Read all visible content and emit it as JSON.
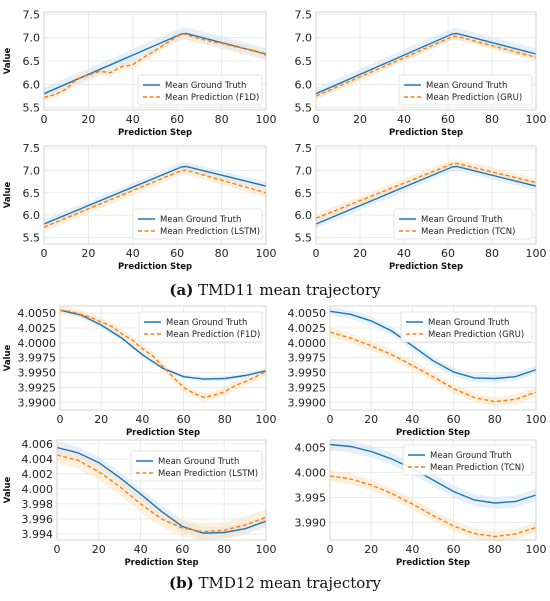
{
  "captions": [
    {
      "label": "(a)",
      "text": " TMD11 mean trajectory"
    },
    {
      "label": "(b)",
      "text": " TMD12 mean trajectory"
    }
  ],
  "colors": {
    "truth": "#1f77b4",
    "pred": "#ff7f0e",
    "truth_band": "#cfe3f5",
    "pred_band": "#fde3c4"
  },
  "chart_data": [
    {
      "type": "line",
      "group": "TMD11",
      "xlabel": "Prediction Step",
      "ylabel": "Value",
      "xlim": [
        0,
        100
      ],
      "ylim": [
        5.45,
        7.55
      ],
      "xticks": [
        "0",
        "20",
        "40",
        "60",
        "80",
        "100"
      ],
      "yticks": [
        "5.5",
        "6.0",
        "6.5",
        "7.0",
        "7.5"
      ],
      "legend_loc": "lower-right",
      "series": [
        {
          "name": "Mean Ground Truth",
          "x": [
            0,
            62,
            64,
            100
          ],
          "y": [
            5.8,
            7.08,
            7.09,
            6.65
          ]
        },
        {
          "name": "Mean Prediction (F1D)",
          "x": [
            0,
            5,
            10,
            15,
            20,
            25,
            30,
            35,
            40,
            45,
            50,
            55,
            60,
            63,
            65,
            70,
            75,
            80,
            85,
            90,
            95,
            100
          ],
          "y": [
            5.72,
            5.78,
            5.9,
            6.12,
            6.2,
            6.28,
            6.25,
            6.38,
            6.42,
            6.58,
            6.72,
            6.88,
            7.03,
            7.08,
            7.05,
            6.98,
            6.92,
            6.88,
            6.82,
            6.77,
            6.72,
            6.62
          ]
        }
      ]
    },
    {
      "type": "line",
      "group": "TMD11",
      "xlabel": "Prediction Step",
      "ylabel": "",
      "xlim": [
        0,
        100
      ],
      "ylim": [
        5.45,
        7.55
      ],
      "xticks": [
        "0",
        "20",
        "40",
        "60",
        "80",
        "100"
      ],
      "yticks": [
        "5.5",
        "6.0",
        "6.5",
        "7.0",
        "7.5"
      ],
      "legend_loc": "lower-right",
      "series": [
        {
          "name": "Mean Ground Truth",
          "x": [
            0,
            62,
            64,
            100
          ],
          "y": [
            5.8,
            7.08,
            7.09,
            6.65
          ]
        },
        {
          "name": "Mean Prediction (GRU)",
          "x": [
            0,
            62,
            64,
            100
          ],
          "y": [
            5.75,
            7.02,
            7.03,
            6.58
          ]
        }
      ]
    },
    {
      "type": "line",
      "group": "TMD11",
      "xlabel": "Prediction Step",
      "ylabel": "Value",
      "xlim": [
        0,
        100
      ],
      "ylim": [
        5.35,
        7.55
      ],
      "xticks": [
        "0",
        "20",
        "40",
        "60",
        "80",
        "100"
      ],
      "yticks": [
        "5.5",
        "6.0",
        "6.5",
        "7.0",
        "7.5"
      ],
      "legend_loc": "lower-right",
      "series": [
        {
          "name": "Mean Ground Truth",
          "x": [
            0,
            62,
            64,
            100
          ],
          "y": [
            5.8,
            7.08,
            7.09,
            6.65
          ]
        },
        {
          "name": "Mean Prediction (LSTM)",
          "x": [
            0,
            62,
            64,
            100
          ],
          "y": [
            5.73,
            7.0,
            7.01,
            6.5
          ]
        }
      ]
    },
    {
      "type": "line",
      "group": "TMD11",
      "xlabel": "Prediction Step",
      "ylabel": "",
      "xlim": [
        0,
        100
      ],
      "ylim": [
        5.35,
        7.55
      ],
      "xticks": [
        "0",
        "20",
        "40",
        "60",
        "80",
        "100"
      ],
      "yticks": [
        "5.5",
        "6.0",
        "6.5",
        "7.0",
        "7.5"
      ],
      "legend_loc": "lower-right",
      "series": [
        {
          "name": "Mean Ground Truth",
          "x": [
            0,
            62,
            64,
            100
          ],
          "y": [
            5.8,
            7.08,
            7.09,
            6.65
          ]
        },
        {
          "name": "Mean Prediction (TCN)",
          "x": [
            0,
            62,
            64,
            100
          ],
          "y": [
            5.93,
            7.15,
            7.16,
            6.73
          ]
        }
      ]
    },
    {
      "type": "line",
      "group": "TMD12",
      "xlabel": "Prediction Step",
      "ylabel": "Value",
      "xlim": [
        0,
        100
      ],
      "ylim": [
        3.9887,
        4.0062
      ],
      "xticks": [
        "0",
        "20",
        "40",
        "60",
        "80",
        "100"
      ],
      "yticks": [
        "3.9900",
        "3.9925",
        "3.9950",
        "3.9975",
        "4.0000",
        "4.0025",
        "4.0050"
      ],
      "legend_loc": "top-right",
      "series": [
        {
          "name": "Mean Ground Truth",
          "x": [
            0,
            10,
            20,
            30,
            40,
            50,
            60,
            70,
            80,
            90,
            100
          ],
          "y": [
            4.0055,
            4.0047,
            4.003,
            4.0008,
            3.998,
            3.9957,
            3.9943,
            3.9939,
            3.994,
            3.9945,
            3.9953
          ]
        },
        {
          "name": "Mean Prediction (F1D)",
          "x": [
            0,
            5,
            10,
            15,
            20,
            25,
            30,
            35,
            40,
            45,
            50,
            55,
            60,
            65,
            70,
            75,
            80,
            85,
            90,
            95,
            100
          ],
          "y": [
            4.0055,
            4.0053,
            4.0048,
            4.0043,
            4.0035,
            4.0028,
            4.0015,
            4.0005,
            3.999,
            3.9978,
            3.996,
            3.9942,
            3.9925,
            3.9915,
            3.9908,
            3.9912,
            3.9918,
            3.9928,
            3.9935,
            3.9943,
            3.9952
          ]
        }
      ]
    },
    {
      "type": "line",
      "group": "TMD12",
      "xlabel": "Prediction Step",
      "ylabel": "",
      "xlim": [
        0,
        100
      ],
      "ylim": [
        3.9887,
        4.0062
      ],
      "xticks": [
        "0",
        "20",
        "40",
        "60",
        "80",
        "100"
      ],
      "yticks": [
        "3.9900",
        "3.9925",
        "3.9950",
        "3.9975",
        "4.0000",
        "4.0025",
        "4.0050"
      ],
      "legend_loc": "top-right",
      "series": [
        {
          "name": "Mean Ground Truth",
          "x": [
            0,
            10,
            20,
            30,
            40,
            50,
            60,
            70,
            80,
            90,
            100
          ],
          "y": [
            4.0053,
            4.0048,
            4.0037,
            4.002,
            3.9995,
            3.997,
            3.9951,
            3.9941,
            3.994,
            3.9943,
            3.9955
          ]
        },
        {
          "name": "Mean Prediction (GRU)",
          "x": [
            0,
            10,
            20,
            30,
            40,
            50,
            60,
            70,
            80,
            90,
            100
          ],
          "y": [
            4.0018,
            4.0008,
            3.9995,
            3.998,
            3.9962,
            3.9943,
            3.9923,
            3.9908,
            3.9901,
            3.9905,
            3.9917
          ]
        }
      ]
    },
    {
      "type": "line",
      "group": "TMD12",
      "xlabel": "Prediction Step",
      "ylabel": "Value",
      "xlim": [
        0,
        100
      ],
      "ylim": [
        3.9932,
        4.0065
      ],
      "xticks": [
        "0",
        "20",
        "40",
        "60",
        "80",
        "100"
      ],
      "yticks": [
        "3.994",
        "3.996",
        "3.998",
        "4.000",
        "4.002",
        "4.004",
        "4.006"
      ],
      "legend_loc": "top-right",
      "series": [
        {
          "name": "Mean Ground Truth",
          "x": [
            0,
            10,
            20,
            30,
            40,
            50,
            60,
            70,
            80,
            90,
            100
          ],
          "y": [
            4.0055,
            4.0048,
            4.0035,
            4.0015,
            3.9993,
            3.997,
            3.995,
            3.9941,
            3.9942,
            3.9947,
            3.9957
          ]
        },
        {
          "name": "Mean Prediction (LSTM)",
          "x": [
            0,
            10,
            20,
            30,
            40,
            50,
            60,
            70,
            80,
            90,
            100
          ],
          "y": [
            4.0045,
            4.0038,
            4.0023,
            4.0003,
            3.998,
            3.996,
            3.9948,
            3.9943,
            3.9945,
            3.9952,
            3.9962
          ]
        }
      ]
    },
    {
      "type": "line",
      "group": "TMD12",
      "xlabel": "Prediction Step",
      "ylabel": "",
      "xlim": [
        0,
        100
      ],
      "ylim": [
        3.9865,
        4.0065
      ],
      "xticks": [
        "0",
        "20",
        "40",
        "60",
        "80",
        "100"
      ],
      "yticks": [
        "3.990",
        "3.995",
        "4.000",
        "4.005"
      ],
      "legend_loc": "top-right",
      "series": [
        {
          "name": "Mean Ground Truth",
          "x": [
            0,
            10,
            20,
            30,
            40,
            50,
            60,
            70,
            80,
            90,
            100
          ],
          "y": [
            4.0056,
            4.0052,
            4.0042,
            4.0027,
            4.0008,
            3.9985,
            3.9962,
            3.9945,
            3.9939,
            3.9942,
            3.9955
          ]
        },
        {
          "name": "Mean Prediction (TCN)",
          "x": [
            0,
            10,
            20,
            30,
            40,
            50,
            60,
            70,
            80,
            90,
            100
          ],
          "y": [
            3.9993,
            3.9987,
            3.9975,
            3.9958,
            3.9937,
            3.9914,
            3.9893,
            3.9878,
            3.9872,
            3.9877,
            3.989
          ]
        }
      ]
    }
  ]
}
